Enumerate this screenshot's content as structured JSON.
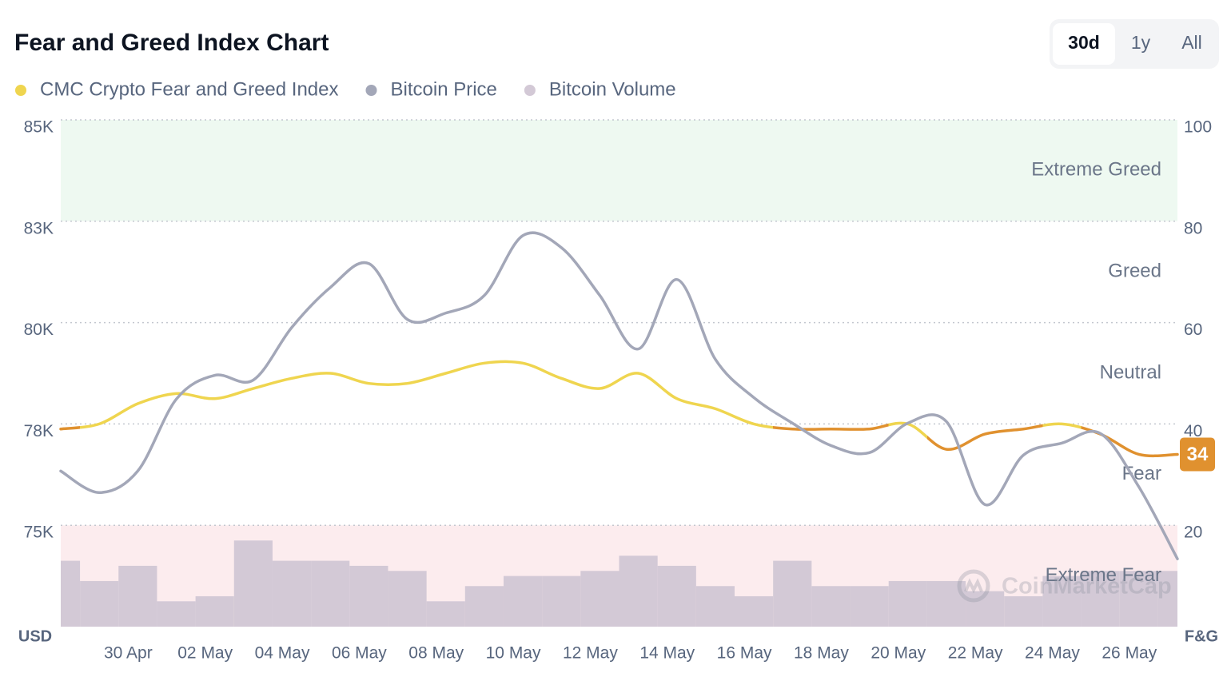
{
  "chart_data": {
    "type": "line",
    "title": "Fear and Greed Index Chart",
    "buttons": [
      {
        "label": "30d",
        "active": true
      },
      {
        "label": "1y",
        "active": false
      },
      {
        "label": "All",
        "active": false
      }
    ],
    "ylabel": "USD",
    "y2label": "F&G",
    "watermark": "CoinMarketCap",
    "categories": [
      null,
      null,
      "30 Apr",
      null,
      "02 May",
      null,
      "04 May",
      null,
      "06 May",
      null,
      "08 May",
      null,
      "10 May",
      null,
      "12 May",
      null,
      "14 May",
      null,
      "16 May",
      null,
      "18 May",
      null,
      "20 May",
      null,
      "22 May",
      null,
      "24 May",
      null,
      "26 May",
      null
    ],
    "ylim": [
      72500,
      85000
    ],
    "yticks": [
      {
        "value": 75000,
        "label": "75K"
      },
      {
        "value": 77500,
        "label": "78K"
      },
      {
        "value": 80000,
        "label": "80K"
      },
      {
        "value": 82500,
        "label": "83K"
      },
      {
        "value": 85000,
        "label": "85K"
      }
    ],
    "y2lim": [
      0,
      100
    ],
    "y2ticks": [
      20,
      40,
      60,
      80,
      100
    ],
    "y3lim": [
      0,
      100
    ],
    "grid": true,
    "zones": [
      {
        "label": "Extreme Greed",
        "from": 80,
        "to": 100,
        "fill": "#eef9f1"
      },
      {
        "label": "Greed",
        "from": 60,
        "to": 80
      },
      {
        "label": "Neutral",
        "from": 40,
        "to": 60
      },
      {
        "label": "Fear",
        "from": 20,
        "to": 40,
        "line_color": "#e0912f"
      },
      {
        "label": "Extreme Fear",
        "from": 0,
        "to": 20,
        "fill": "#fcecee",
        "line_color": "#e0912f"
      }
    ],
    "series": [
      {
        "name": "CMC Crypto Fear and Greed Index",
        "type": "line",
        "axis": "y2",
        "color": "#efd54f",
        "values": [
          39,
          40,
          44,
          46,
          45,
          47,
          49,
          50,
          48,
          48,
          50,
          52,
          52,
          49,
          47,
          50,
          45,
          43,
          40,
          39,
          39,
          39,
          40,
          35,
          38,
          39,
          40,
          38,
          34,
          34
        ]
      },
      {
        "name": "Bitcoin Price",
        "type": "line",
        "axis": "y",
        "color": "#a3a7b8",
        "values": [
          76339,
          75807,
          76339,
          78110,
          78700,
          78583,
          79882,
          80866,
          81457,
          80079,
          80236,
          80669,
          82146,
          81850,
          80669,
          79350,
          81063,
          79094,
          78150,
          77520,
          76969,
          76791,
          77520,
          77559,
          75512,
          76732,
          77028,
          77264,
          75945,
          74173
        ]
      },
      {
        "name": "Bitcoin Volume",
        "type": "bar",
        "axis": "y3",
        "color": "#d3c9d6",
        "values": [
          13,
          9,
          12,
          5,
          6,
          17,
          13,
          13,
          12,
          11,
          5,
          8,
          10,
          10,
          11,
          14,
          12,
          8,
          6,
          13,
          8,
          8,
          9,
          9,
          7,
          6,
          10,
          11,
          11,
          11
        ]
      }
    ]
  }
}
